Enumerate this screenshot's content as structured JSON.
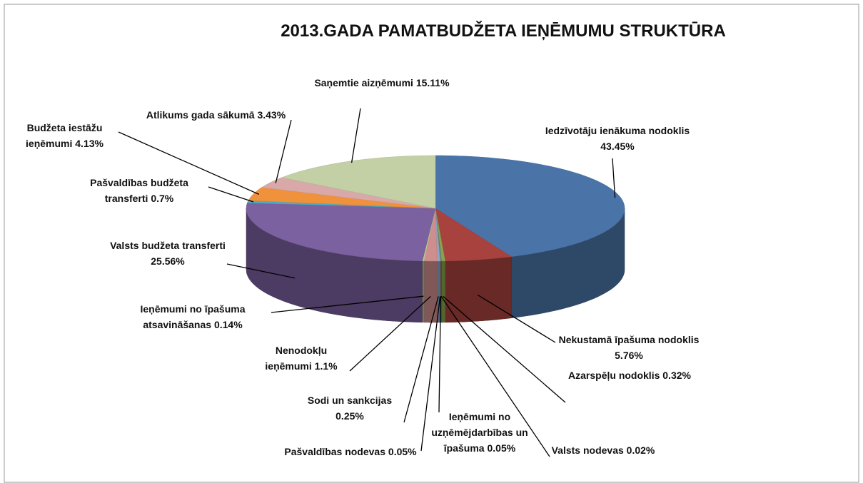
{
  "chart_data": {
    "type": "pie",
    "title": "2013.GADA PAMATBUDŽETA IEŅĒMUMU STRUKTŪRA",
    "categories": [
      "Iedzīvotāju ienākuma nodoklis",
      "Nekustamā īpašuma nodoklis",
      "Azarspēļu nodoklis",
      "Valsts nodevas",
      "Ieņēmumi no uzņēmējdarbības un īpašuma",
      "Pašvaldības nodevas",
      "Sodi un sankcijas",
      "Nenodokļu ieņēmumi",
      "Ieņēmumi no īpašuma atsavināšanas",
      "Valsts budžeta transferti",
      "Pašvaldības budžeta transferti",
      "Budžeta iestāžu ieņēmumi",
      "Atlikums gada sākumā",
      "Saņemtie aizņēmumi"
    ],
    "values": [
      43.45,
      5.76,
      0.32,
      0.02,
      0.05,
      0.05,
      0.25,
      1.1,
      0.14,
      25.56,
      0.7,
      4.13,
      3.43,
      15.11
    ],
    "value_labels": [
      "43.45%",
      "5.76%",
      "0.32%",
      "0.02%",
      "0.05%",
      "0.05%",
      "0.25%",
      "1.1%",
      "0.14%",
      "25.56%",
      "0.7%",
      "4.13%",
      "3.43%",
      "15.11%"
    ],
    "colors": [
      "#4a74a8",
      "#a8423f",
      "#86a44a",
      "#6e548d",
      "#3d96ae",
      "#da8137",
      "#8ea5cb",
      "#ce8e8d",
      "#b5ca92",
      "#7b61a0",
      "#4eacc6",
      "#f0923c",
      "#d9a8a8",
      "#c3cfa5"
    ]
  }
}
